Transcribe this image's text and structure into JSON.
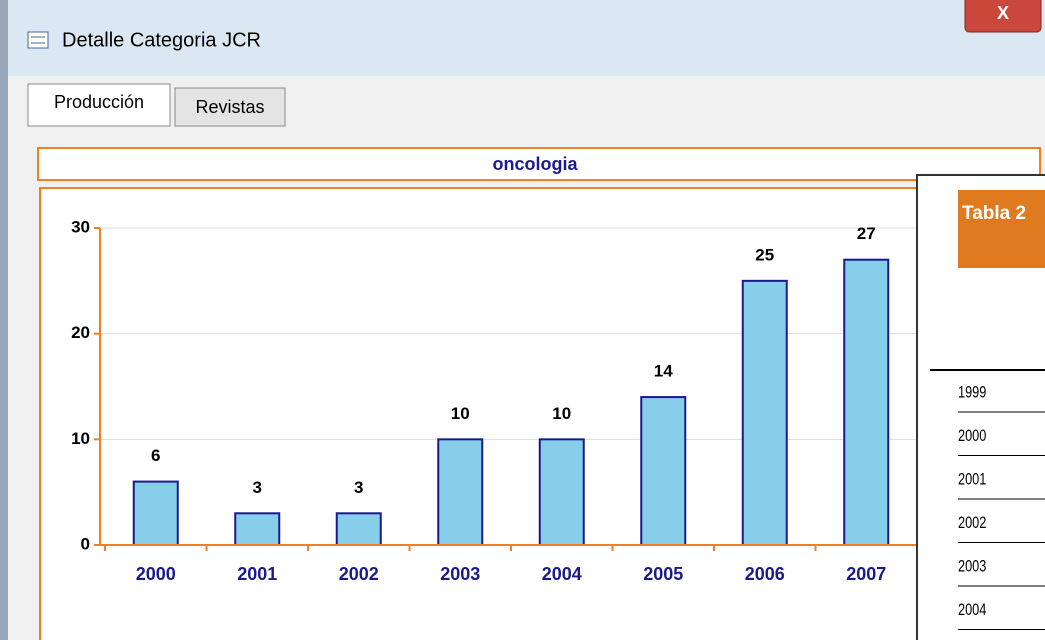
{
  "window": {
    "title": "Detalle Categoria JCR",
    "tabs": [
      "Producción",
      "Revistas"
    ]
  },
  "chart_data": {
    "type": "bar",
    "title": "oncologia",
    "categories": [
      "2000",
      "2001",
      "2002",
      "2003",
      "2004",
      "2005",
      "2006",
      "2007"
    ],
    "values": [
      6,
      3,
      3,
      10,
      10,
      14,
      25,
      27
    ],
    "color": "#87ceeb",
    "ylim": [
      0,
      30
    ],
    "yticks": [
      0,
      10,
      20,
      30
    ],
    "grid": true
  },
  "overlay_table": {
    "title": "Tabla 2",
    "years": [
      "1999",
      "2000",
      "2001",
      "2002",
      "2003",
      "2004"
    ]
  }
}
